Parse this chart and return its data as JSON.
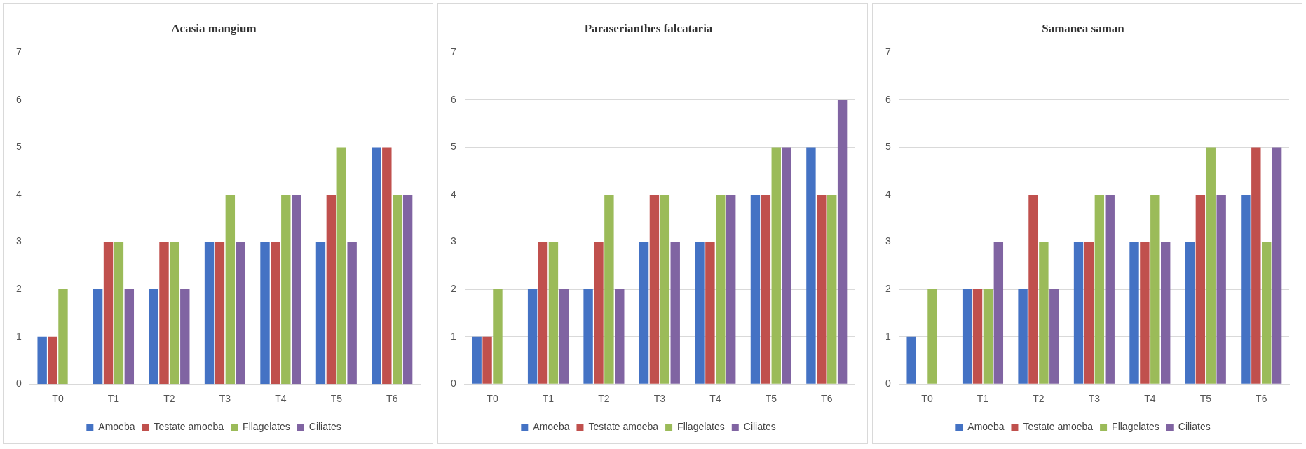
{
  "chart_data": [
    {
      "type": "bar",
      "title": "Acasia mangium",
      "categories": [
        "T0",
        "T1",
        "T2",
        "T3",
        "T4",
        "T5",
        "T6"
      ],
      "series": [
        {
          "name": "Amoeba",
          "color": "#4472c4",
          "values": [
            1,
            2,
            2,
            3,
            3,
            3,
            5
          ]
        },
        {
          "name": "Testate amoeba",
          "color": "#c0504d",
          "values": [
            1,
            3,
            3,
            3,
            3,
            4,
            5
          ]
        },
        {
          "name": "Fllagelates",
          "color": "#9bbb59",
          "values": [
            2,
            3,
            3,
            4,
            4,
            5,
            4
          ]
        },
        {
          "name": "Ciliates",
          "color": "#8064a2",
          "values": [
            0,
            2,
            2,
            3,
            4,
            3,
            4
          ]
        }
      ],
      "ylim": [
        0,
        7
      ],
      "yticks": [
        0,
        1,
        2,
        3,
        4,
        5,
        6,
        7
      ],
      "grid": false,
      "legend": "bottom"
    },
    {
      "type": "bar",
      "title": "Paraserianthes falcataria",
      "categories": [
        "T0",
        "T1",
        "T2",
        "T3",
        "T4",
        "T5",
        "T6"
      ],
      "series": [
        {
          "name": "Amoeba",
          "color": "#4472c4",
          "values": [
            1,
            2,
            2,
            3,
            3,
            4,
            5
          ]
        },
        {
          "name": "Testate amoeba",
          "color": "#c0504d",
          "values": [
            1,
            3,
            3,
            4,
            3,
            4,
            4
          ]
        },
        {
          "name": "Fllagelates",
          "color": "#9bbb59",
          "values": [
            2,
            3,
            4,
            4,
            4,
            5,
            4
          ]
        },
        {
          "name": "Ciliates",
          "color": "#8064a2",
          "values": [
            0,
            2,
            2,
            3,
            4,
            5,
            6
          ]
        }
      ],
      "ylim": [
        0,
        7
      ],
      "yticks": [
        0,
        1,
        2,
        3,
        4,
        5,
        6,
        7
      ],
      "grid": "y",
      "legend": "bottom"
    },
    {
      "type": "bar",
      "title": "Samanea saman",
      "categories": [
        "T0",
        "T1",
        "T2",
        "T3",
        "T4",
        "T5",
        "T6"
      ],
      "series": [
        {
          "name": "Amoeba",
          "color": "#4472c4",
          "values": [
            1,
            2,
            2,
            3,
            3,
            3,
            4
          ]
        },
        {
          "name": "Testate amoeba",
          "color": "#c0504d",
          "values": [
            0,
            2,
            4,
            3,
            3,
            4,
            5
          ]
        },
        {
          "name": "Fllagelates",
          "color": "#9bbb59",
          "values": [
            2,
            2,
            3,
            4,
            4,
            5,
            3
          ]
        },
        {
          "name": "Ciliates",
          "color": "#8064a2",
          "values": [
            0,
            3,
            2,
            4,
            3,
            4,
            5
          ]
        }
      ],
      "ylim": [
        0,
        7
      ],
      "yticks": [
        0,
        1,
        2,
        3,
        4,
        5,
        6,
        7
      ],
      "grid": "y",
      "legend": "bottom"
    }
  ]
}
